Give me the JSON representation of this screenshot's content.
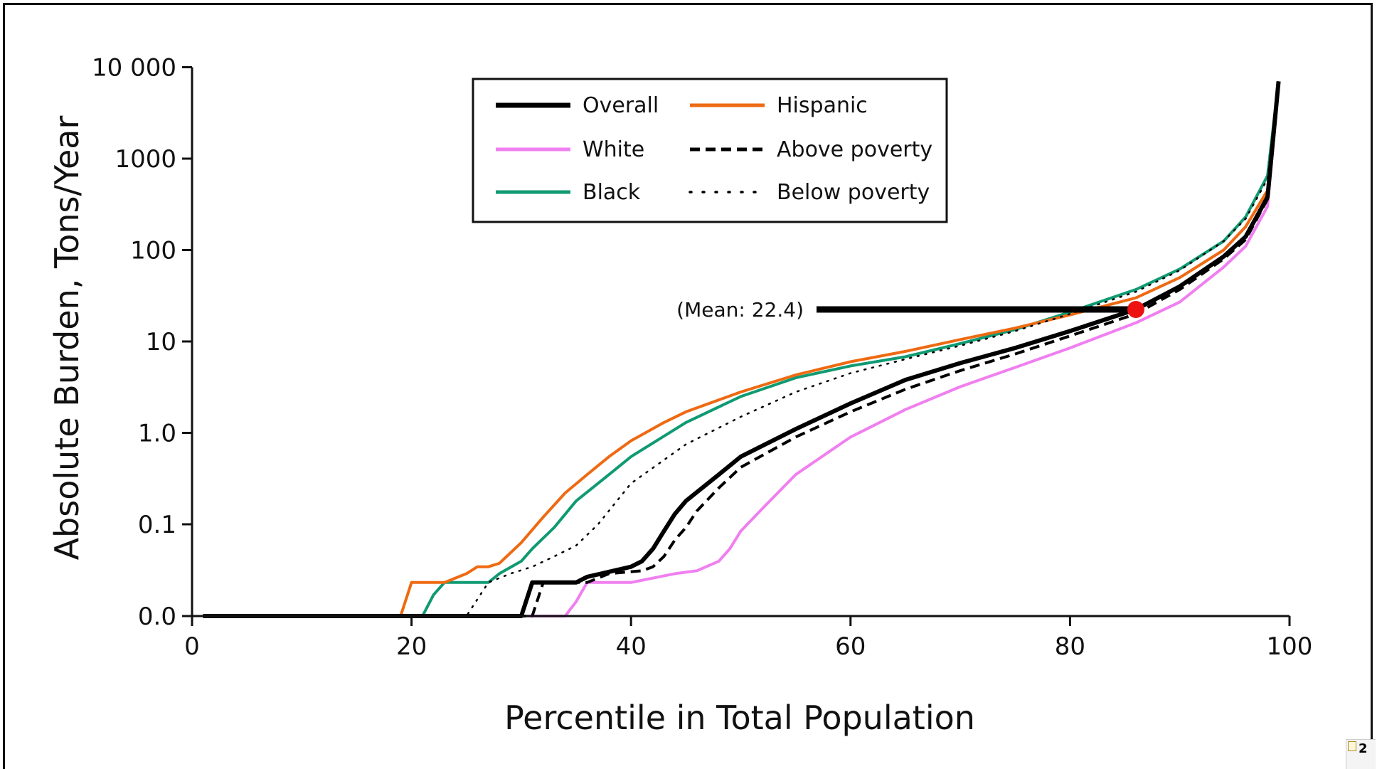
{
  "chart_data": {
    "type": "line",
    "xlabel": "Percentile in Total Population",
    "ylabel": "Absolute Burden, Tons/Year",
    "x_ticks": [
      0,
      20,
      40,
      60,
      80,
      100
    ],
    "y_scale": "log",
    "y_ticks": [
      {
        "value": 0.0,
        "label": "0.0"
      },
      {
        "value": 0.1,
        "label": "0.1"
      },
      {
        "value": 1.0,
        "label": "1.0"
      },
      {
        "value": 10,
        "label": "10"
      },
      {
        "value": 100,
        "label": "100"
      },
      {
        "value": 1000,
        "label": "1000"
      },
      {
        "value": 10000,
        "label": "10 000"
      }
    ],
    "xlim": [
      0,
      100
    ],
    "ylim": [
      0.0,
      10000
    ],
    "grid": false,
    "legend_position": "top-center",
    "annotation": {
      "text": "(Mean: 22.4)",
      "x": 86,
      "y": 22.4
    },
    "series": [
      {
        "name": "Overall",
        "color": "#000000",
        "style": "solid-thick",
        "points": [
          [
            1,
            0
          ],
          [
            30,
            0
          ],
          [
            31,
            0.015
          ],
          [
            35,
            0.015
          ],
          [
            36,
            0.018
          ],
          [
            40,
            0.025
          ],
          [
            41,
            0.03
          ],
          [
            42,
            0.045
          ],
          [
            43,
            0.08
          ],
          [
            44,
            0.13
          ],
          [
            45,
            0.18
          ],
          [
            48,
            0.35
          ],
          [
            50,
            0.55
          ],
          [
            55,
            1.1
          ],
          [
            60,
            2.1
          ],
          [
            65,
            3.8
          ],
          [
            70,
            5.8
          ],
          [
            75,
            8.5
          ],
          [
            80,
            13
          ],
          [
            86,
            22.4
          ],
          [
            90,
            40
          ],
          [
            94,
            85
          ],
          [
            96,
            140
          ],
          [
            98,
            380
          ],
          [
            99,
            7000
          ]
        ]
      },
      {
        "name": "White",
        "color": "#f07ff0",
        "style": "solid",
        "points": [
          [
            1,
            0
          ],
          [
            34,
            0
          ],
          [
            35,
            0.008
          ],
          [
            36,
            0.015
          ],
          [
            40,
            0.015
          ],
          [
            44,
            0.02
          ],
          [
            46,
            0.022
          ],
          [
            48,
            0.03
          ],
          [
            49,
            0.045
          ],
          [
            50,
            0.08
          ],
          [
            52,
            0.15
          ],
          [
            55,
            0.35
          ],
          [
            60,
            0.9
          ],
          [
            65,
            1.8
          ],
          [
            70,
            3.2
          ],
          [
            75,
            5.2
          ],
          [
            80,
            8.5
          ],
          [
            86,
            16
          ],
          [
            90,
            27
          ],
          [
            94,
            65
          ],
          [
            96,
            110
          ],
          [
            98,
            300
          ],
          [
            99,
            6000
          ]
        ]
      },
      {
        "name": "Black",
        "color": "#0f9a72",
        "style": "solid",
        "points": [
          [
            1,
            0
          ],
          [
            21,
            0
          ],
          [
            22,
            0.01
          ],
          [
            23,
            0.015
          ],
          [
            27,
            0.015
          ],
          [
            28,
            0.02
          ],
          [
            30,
            0.03
          ],
          [
            31,
            0.045
          ],
          [
            33,
            0.09
          ],
          [
            35,
            0.18
          ],
          [
            38,
            0.35
          ],
          [
            40,
            0.55
          ],
          [
            45,
            1.3
          ],
          [
            50,
            2.5
          ],
          [
            55,
            4.0
          ],
          [
            60,
            5.4
          ],
          [
            65,
            6.8
          ],
          [
            70,
            9.5
          ],
          [
            75,
            13.5
          ],
          [
            80,
            21
          ],
          [
            86,
            37
          ],
          [
            90,
            62
          ],
          [
            94,
            125
          ],
          [
            96,
            230
          ],
          [
            98,
            650
          ],
          [
            99,
            7000
          ]
        ]
      },
      {
        "name": "Hispanic",
        "color": "#ee6a12",
        "style": "solid",
        "points": [
          [
            1,
            0
          ],
          [
            19,
            0
          ],
          [
            20,
            0.015
          ],
          [
            23,
            0.015
          ],
          [
            25,
            0.02
          ],
          [
            26,
            0.025
          ],
          [
            27,
            0.025
          ],
          [
            28,
            0.028
          ],
          [
            30,
            0.055
          ],
          [
            32,
            0.12
          ],
          [
            34,
            0.22
          ],
          [
            36,
            0.35
          ],
          [
            38,
            0.55
          ],
          [
            40,
            0.82
          ],
          [
            43,
            1.3
          ],
          [
            45,
            1.7
          ],
          [
            50,
            2.8
          ],
          [
            55,
            4.3
          ],
          [
            60,
            6.0
          ],
          [
            65,
            7.8
          ],
          [
            70,
            10.5
          ],
          [
            75,
            14
          ],
          [
            80,
            19.5
          ],
          [
            86,
            30
          ],
          [
            90,
            50
          ],
          [
            94,
            100
          ],
          [
            96,
            180
          ],
          [
            98,
            450
          ],
          [
            99,
            7000
          ]
        ]
      },
      {
        "name": "Above poverty",
        "color": "#000000",
        "style": "dashed",
        "points": [
          [
            1,
            0
          ],
          [
            31,
            0
          ],
          [
            32,
            0.015
          ],
          [
            36,
            0.015
          ],
          [
            38,
            0.02
          ],
          [
            41,
            0.022
          ],
          [
            42,
            0.025
          ],
          [
            43,
            0.035
          ],
          [
            44,
            0.06
          ],
          [
            45,
            0.09
          ],
          [
            46,
            0.14
          ],
          [
            48,
            0.25
          ],
          [
            50,
            0.42
          ],
          [
            55,
            0.9
          ],
          [
            60,
            1.7
          ],
          [
            65,
            3.0
          ],
          [
            70,
            4.8
          ],
          [
            75,
            7.3
          ],
          [
            80,
            11.5
          ],
          [
            86,
            20
          ],
          [
            90,
            37
          ],
          [
            94,
            80
          ],
          [
            96,
            130
          ],
          [
            98,
            360
          ],
          [
            99,
            7000
          ]
        ]
      },
      {
        "name": "Below poverty",
        "color": "#000000",
        "style": "dotted",
        "points": [
          [
            1,
            0
          ],
          [
            25,
            0
          ],
          [
            27,
            0.015
          ],
          [
            29,
            0.02
          ],
          [
            31,
            0.025
          ],
          [
            33,
            0.035
          ],
          [
            35,
            0.05
          ],
          [
            37,
            0.1
          ],
          [
            40,
            0.28
          ],
          [
            45,
            0.75
          ],
          [
            50,
            1.5
          ],
          [
            55,
            2.8
          ],
          [
            60,
            4.5
          ],
          [
            65,
            6.4
          ],
          [
            70,
            9
          ],
          [
            75,
            13
          ],
          [
            80,
            20
          ],
          [
            86,
            35
          ],
          [
            90,
            60
          ],
          [
            94,
            125
          ],
          [
            96,
            220
          ],
          [
            98,
            600
          ],
          [
            99,
            7000
          ]
        ]
      }
    ]
  },
  "ui": {
    "corner_count": "2"
  }
}
